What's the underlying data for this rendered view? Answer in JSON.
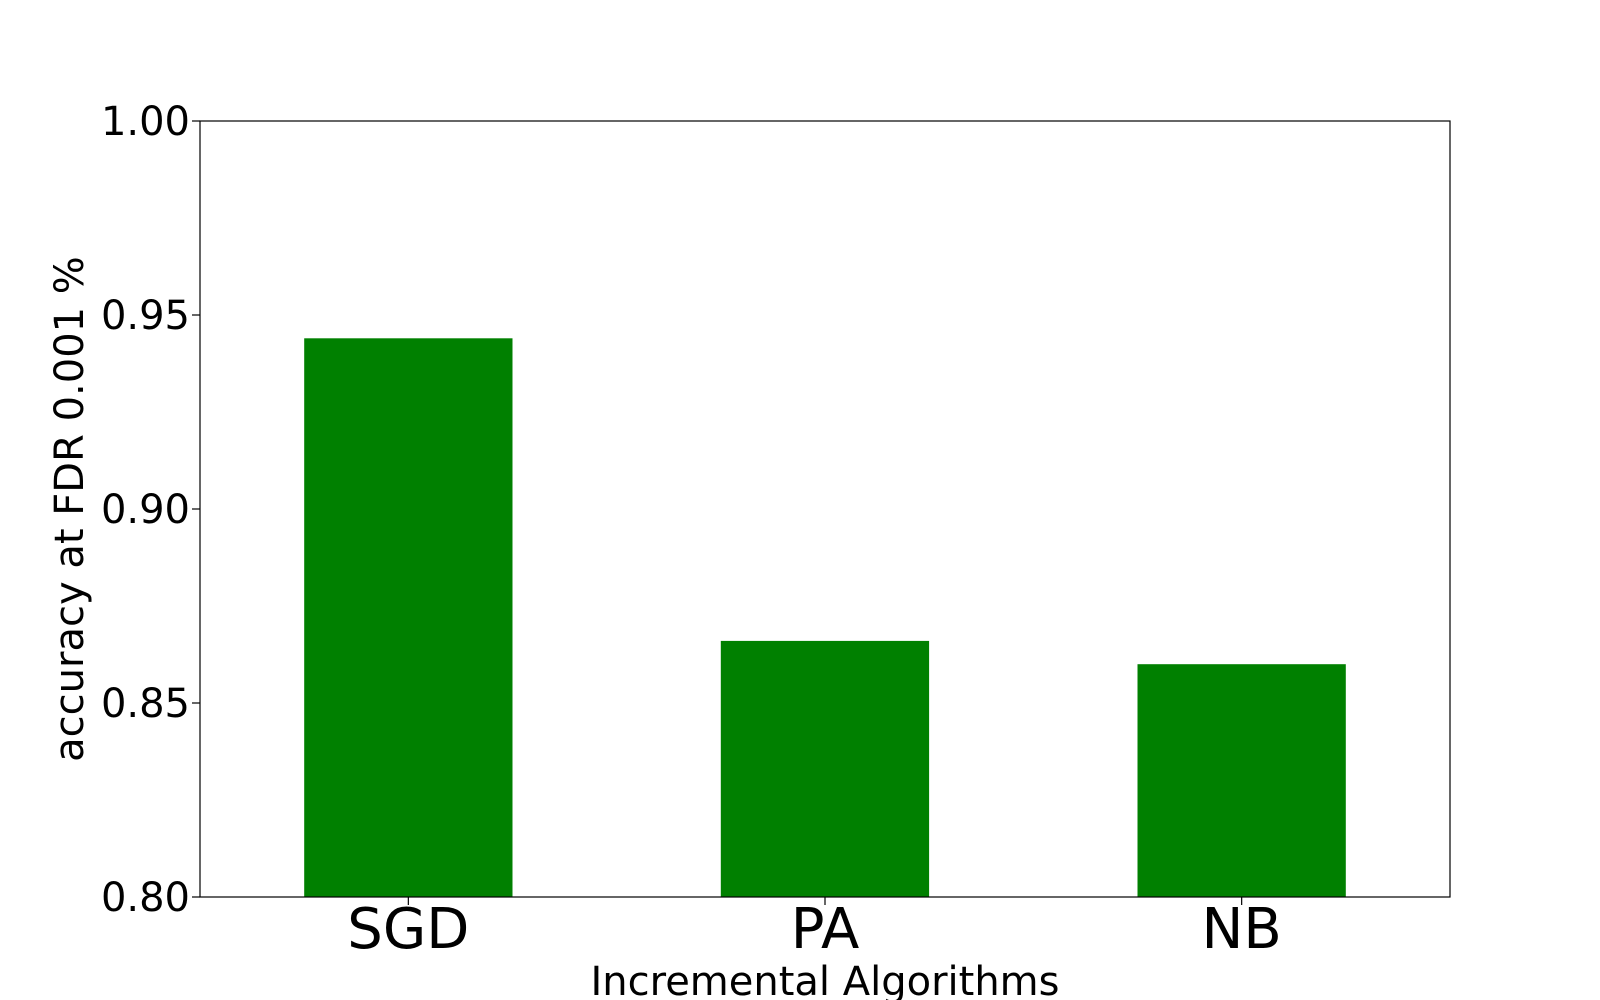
{
  "chart_data": {
    "type": "bar",
    "title": "",
    "xlabel": "Incremental Algorithms",
    "ylabel": "accuracy at FDR 0.001 %",
    "categories": [
      "SGD",
      "PA",
      "NB"
    ],
    "values": [
      0.944,
      0.866,
      0.86
    ],
    "ylim": [
      0.8,
      1.0
    ],
    "yticks": [
      "0.80",
      "0.85",
      "0.90",
      "0.95",
      "1.00"
    ],
    "bar_color": "#008000",
    "grid": false,
    "legend": "none"
  }
}
